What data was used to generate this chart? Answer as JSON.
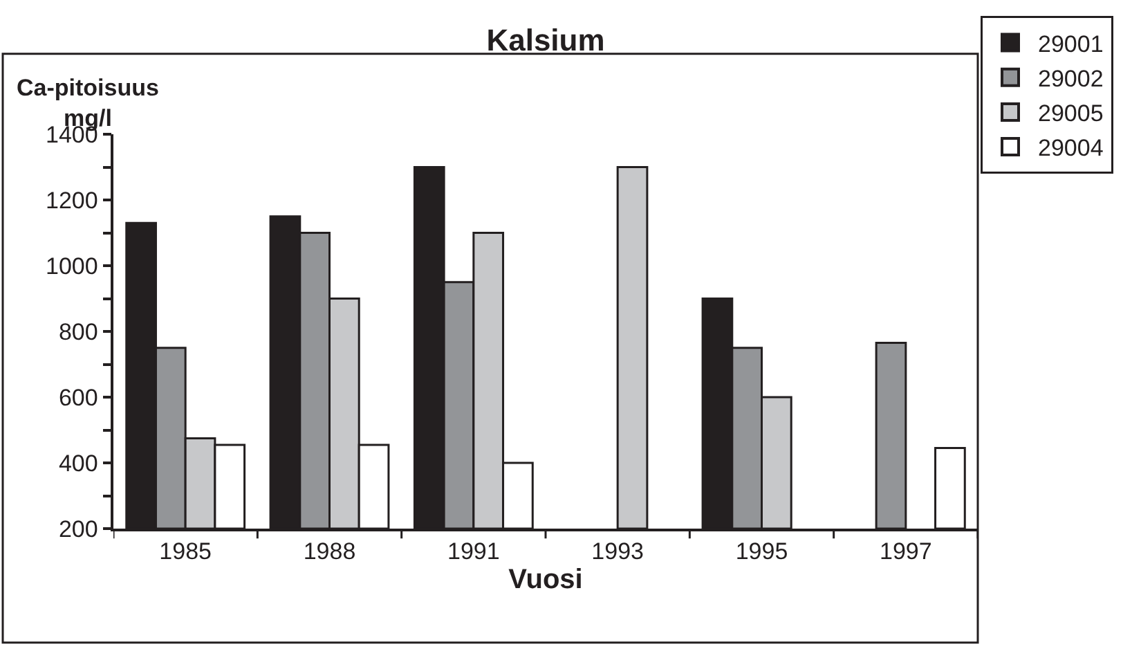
{
  "chart_data": {
    "type": "bar",
    "title": "Kalsium",
    "xlabel": "Vuosi",
    "ylabel": "Ca-pitoisuus\nmg/l",
    "categories": [
      "1985",
      "1988",
      "1991",
      "1993",
      "1995",
      "1997"
    ],
    "series": [
      {
        "name": "29001",
        "color": "#231f20",
        "values": [
          1130,
          1150,
          1300,
          null,
          900,
          null
        ]
      },
      {
        "name": "29002",
        "color": "#939598",
        "values": [
          750,
          1100,
          950,
          null,
          750,
          765
        ]
      },
      {
        "name": "29005",
        "color": "#c7c8ca",
        "values": [
          475,
          900,
          1100,
          1300,
          600,
          null
        ]
      },
      {
        "name": "29004",
        "color": "#ffffff",
        "values": [
          455,
          455,
          400,
          null,
          null,
          445
        ]
      }
    ],
    "ylim": [
      200,
      1400
    ],
    "yticks": [
      200,
      {
        "value": 300,
        "label": null
      },
      400,
      {
        "value": 500,
        "label": null
      },
      600,
      {
        "value": 700,
        "label": null
      },
      800,
      {
        "value": 900,
        "label": null
      },
      1000,
      {
        "value": 1100,
        "label": null
      },
      1200,
      {
        "value": 1300,
        "label": null
      },
      1400
    ],
    "legend": "top right"
  }
}
